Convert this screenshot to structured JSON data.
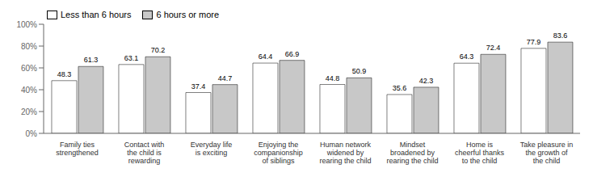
{
  "chart_data": {
    "type": "bar",
    "categories": [
      "Family ties\nstrengthened",
      "Contact with\nthe child is\nrewarding",
      "Everyday life\nis exciting",
      "Enjoying the\ncompanionship\nof siblings",
      "Human network\nwidened by\nrearing the child",
      "Mindset\nbroadened by\nrearing the child",
      "Home is\ncheerful thanks\nto the child",
      "Take pleasure in\nthe growth of\nthe child"
    ],
    "series": [
      {
        "name": "Less than 6 hours",
        "color": "#ffffff",
        "values": [
          48.3,
          63.1,
          37.4,
          64.4,
          44.8,
          35.6,
          64.3,
          77.9
        ]
      },
      {
        "name": "6 hours or more",
        "color": "#c8c8c8",
        "values": [
          61.3,
          70.2,
          44.7,
          66.9,
          50.9,
          42.3,
          72.4,
          83.6
        ]
      }
    ],
    "ylim": [
      0,
      100
    ],
    "yticks": [
      {
        "value": 0,
        "label": "0%"
      },
      {
        "value": 20,
        "label": "20%"
      },
      {
        "value": 40,
        "label": "40%"
      },
      {
        "value": 60,
        "label": "60%"
      },
      {
        "value": 80,
        "label": "80%"
      },
      {
        "value": 100,
        "label": "100%"
      }
    ],
    "grid": false,
    "legend": "upper left",
    "data_labels": true
  }
}
